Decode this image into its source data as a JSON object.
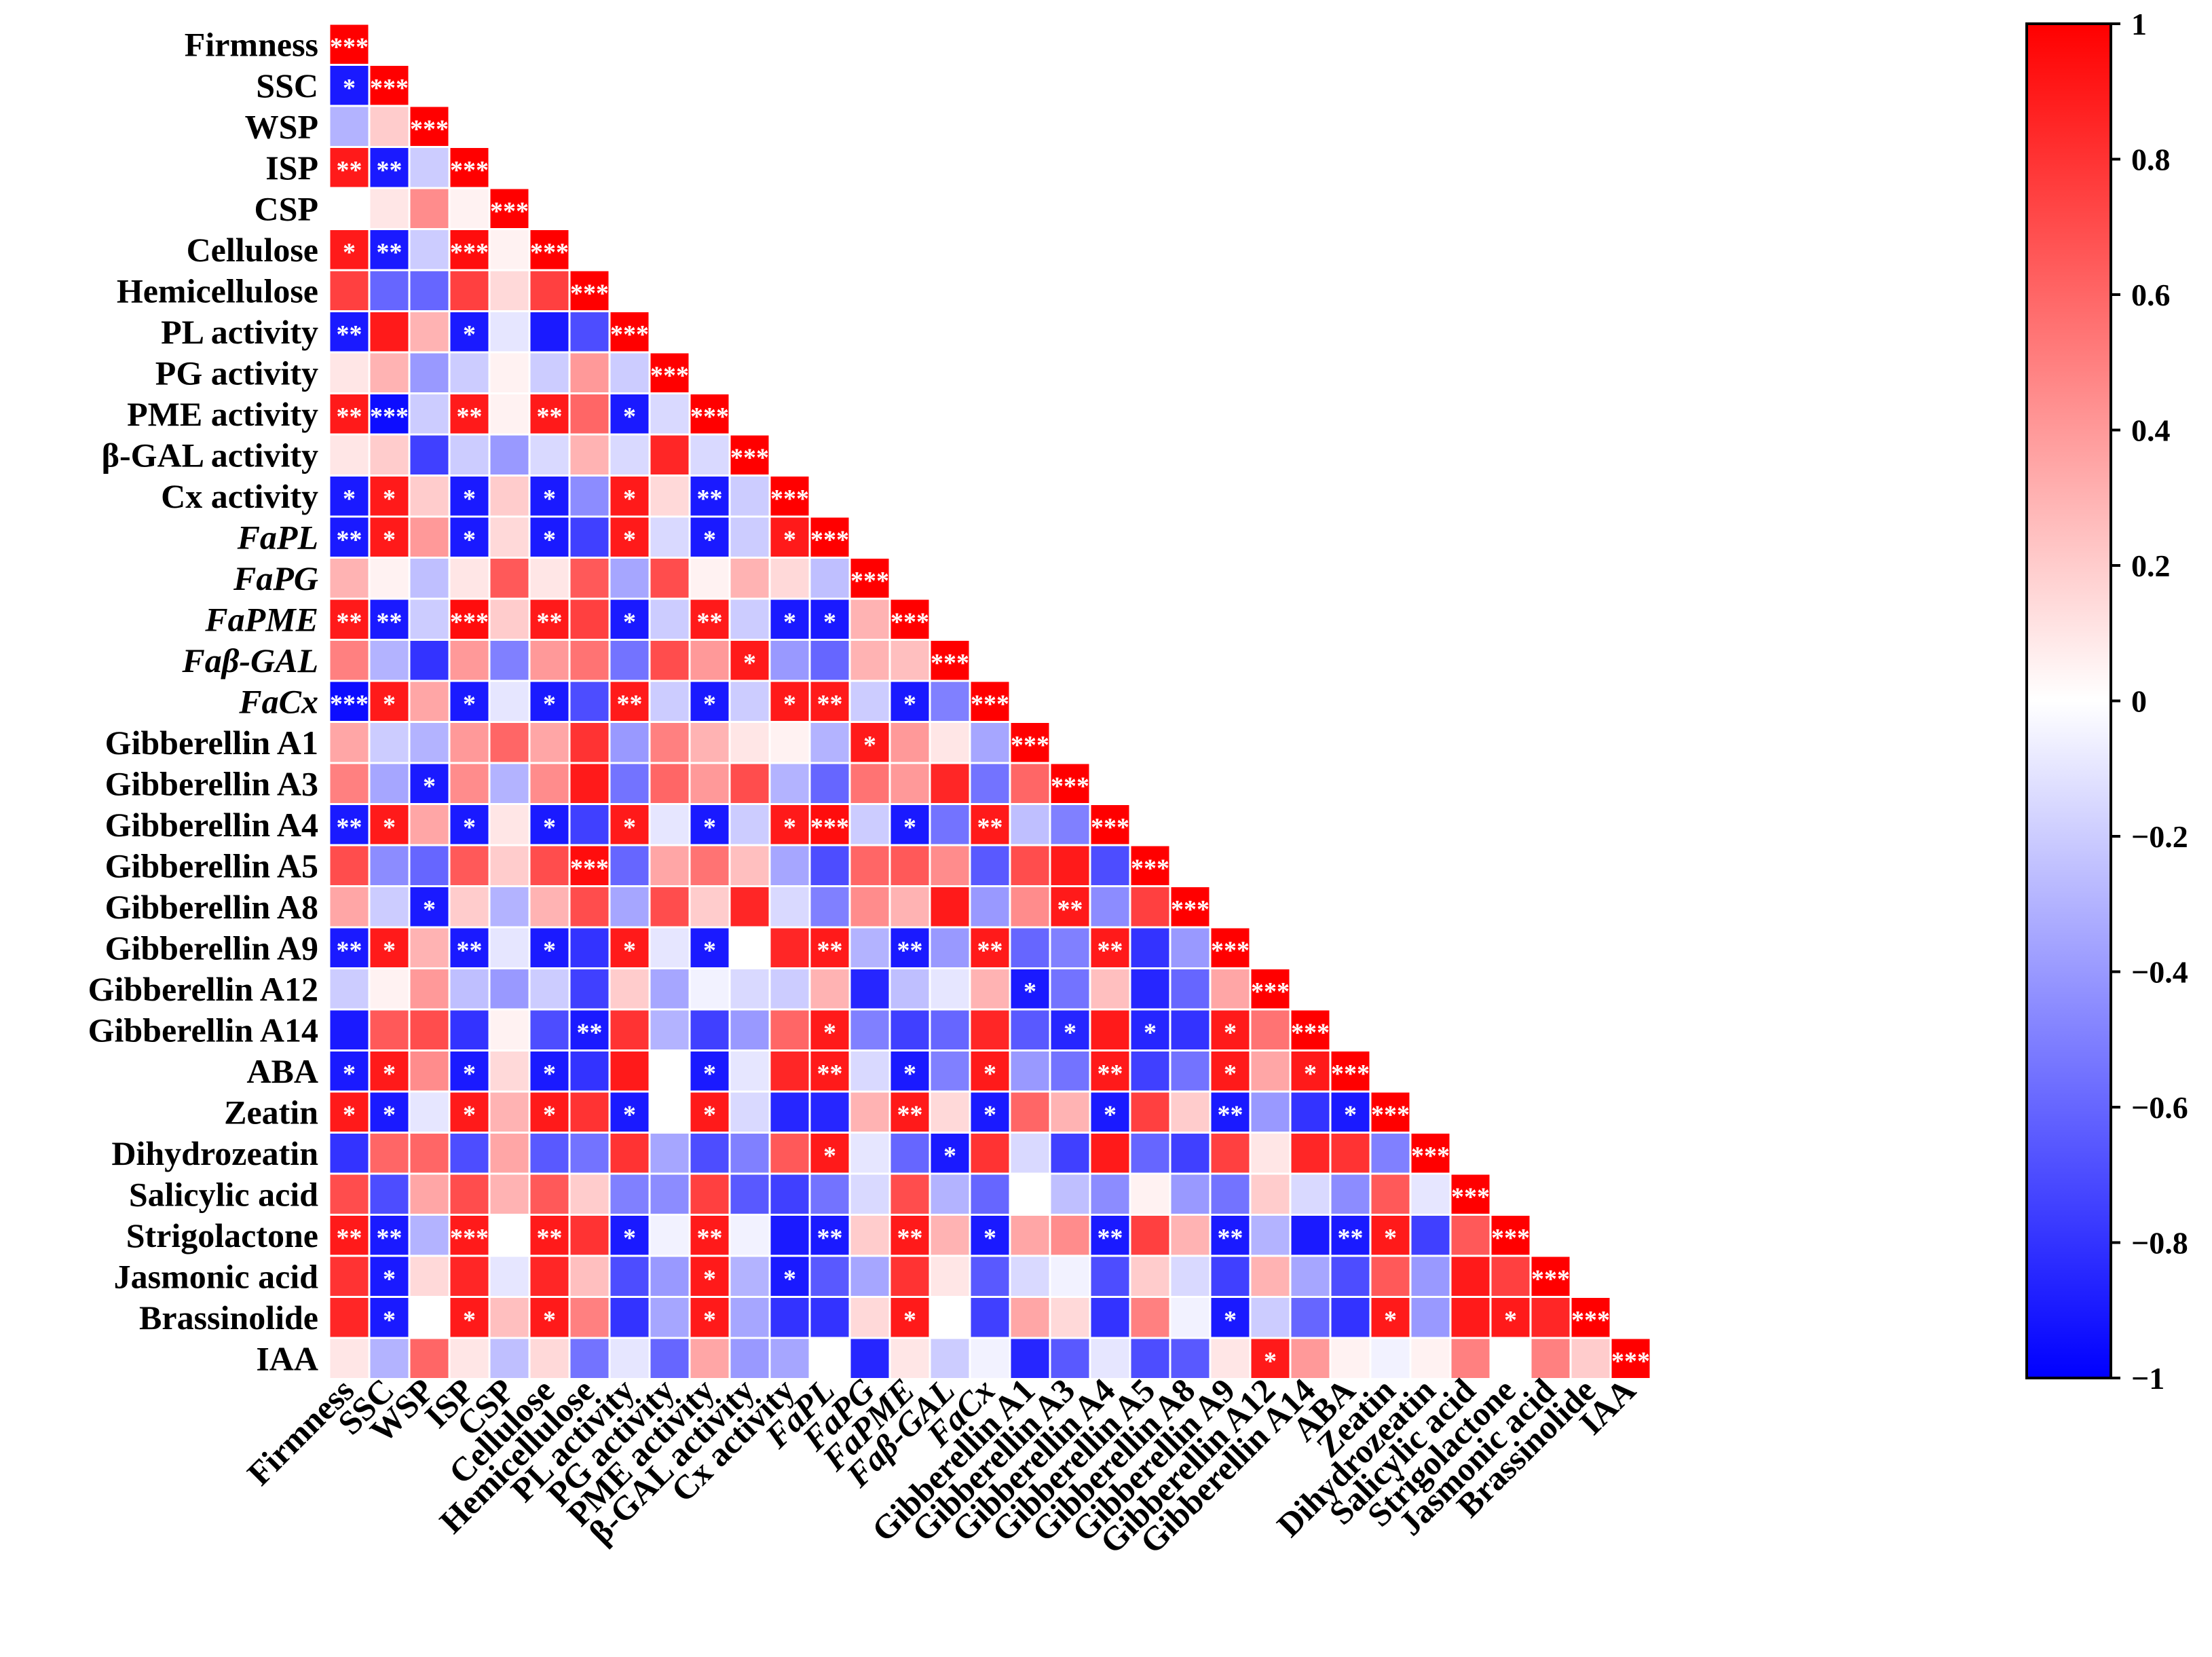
{
  "chart_data": {
    "type": "heatmap",
    "variables": [
      {
        "label": "Firmness",
        "italic": false
      },
      {
        "label": "SSC",
        "italic": false
      },
      {
        "label": "WSP",
        "italic": false
      },
      {
        "label": "ISP",
        "italic": false
      },
      {
        "label": "CSP",
        "italic": false
      },
      {
        "label": "Cellulose",
        "italic": false
      },
      {
        "label": "Hemicellulose",
        "italic": false
      },
      {
        "label": "PL activity",
        "italic": false
      },
      {
        "label": "PG activity",
        "italic": false
      },
      {
        "label": "PME activity",
        "italic": false
      },
      {
        "label": "β-GAL activity",
        "italic": false
      },
      {
        "label": "Cx activity",
        "italic": false
      },
      {
        "label": "FaPL",
        "italic": true
      },
      {
        "label": "FaPG",
        "italic": true
      },
      {
        "label": "FaPME",
        "italic": true
      },
      {
        "label": "Faβ-GAL",
        "italic": true
      },
      {
        "label": "FaCx",
        "italic": true
      },
      {
        "label": "Gibberellin A1",
        "italic": false
      },
      {
        "label": "Gibberellin A3",
        "italic": false
      },
      {
        "label": "Gibberellin A4",
        "italic": false
      },
      {
        "label": "Gibberellin A5",
        "italic": false
      },
      {
        "label": "Gibberellin A8",
        "italic": false
      },
      {
        "label": "Gibberellin A9",
        "italic": false
      },
      {
        "label": "Gibberellin A12",
        "italic": false
      },
      {
        "label": "Gibberellin A14",
        "italic": false
      },
      {
        "label": "ABA",
        "italic": false
      },
      {
        "label": "Zeatin",
        "italic": false
      },
      {
        "label": "Dihydrozeatin",
        "italic": false
      },
      {
        "label": "Salicylic acid",
        "italic": false
      },
      {
        "label": "Strigolactone",
        "italic": false
      },
      {
        "label": "Jasmonic acid",
        "italic": false
      },
      {
        "label": "Brassinolide",
        "italic": false
      },
      {
        "label": "IAA",
        "italic": false
      }
    ],
    "correlation_rows": [
      [
        1
      ],
      [
        -0.9,
        1
      ],
      [
        -0.3,
        0.2,
        1
      ],
      [
        0.9,
        -0.9,
        -0.2,
        1
      ],
      [
        0.0,
        0.1,
        0.45,
        0.05,
        1
      ],
      [
        0.9,
        -0.9,
        -0.2,
        0.95,
        0.05,
        1
      ],
      [
        0.75,
        -0.6,
        -0.6,
        0.75,
        0.15,
        0.75,
        1
      ],
      [
        -0.9,
        0.9,
        0.3,
        -0.9,
        -0.1,
        -0.9,
        -0.7,
        1
      ],
      [
        0.1,
        0.3,
        -0.4,
        -0.2,
        0.05,
        -0.2,
        0.4,
        -0.2,
        1
      ],
      [
        0.9,
        -0.95,
        -0.2,
        0.9,
        0.05,
        0.9,
        0.6,
        -0.9,
        -0.15,
        1
      ],
      [
        0.1,
        0.2,
        -0.75,
        -0.2,
        -0.4,
        -0.15,
        0.3,
        -0.15,
        0.85,
        -0.15,
        1
      ],
      [
        -0.9,
        0.9,
        0.2,
        -0.9,
        0.2,
        -0.9,
        -0.45,
        0.9,
        0.15,
        -0.9,
        -0.2,
        1
      ],
      [
        -0.9,
        0.9,
        0.4,
        -0.9,
        0.15,
        -0.9,
        -0.75,
        0.9,
        -0.15,
        -0.9,
        -0.2,
        0.9,
        1
      ],
      [
        0.3,
        0.05,
        -0.25,
        0.1,
        0.65,
        0.1,
        0.65,
        -0.35,
        0.7,
        0.05,
        0.3,
        0.15,
        -0.25,
        1
      ],
      [
        0.9,
        -0.9,
        -0.2,
        0.95,
        0.2,
        0.9,
        0.75,
        -0.9,
        -0.2,
        0.9,
        -0.2,
        -0.9,
        -0.9,
        0.3,
        1
      ],
      [
        0.5,
        -0.3,
        -0.8,
        0.4,
        -0.5,
        0.4,
        0.55,
        -0.55,
        0.7,
        0.4,
        0.9,
        -0.4,
        -0.6,
        0.3,
        0.25,
        1
      ],
      [
        -0.95,
        0.9,
        0.35,
        -0.9,
        -0.1,
        -0.9,
        -0.7,
        0.9,
        -0.2,
        -0.9,
        -0.2,
        0.9,
        0.9,
        -0.2,
        -0.9,
        -0.5,
        1
      ],
      [
        0.35,
        -0.2,
        -0.3,
        0.4,
        0.6,
        0.35,
        0.8,
        -0.4,
        0.5,
        0.3,
        0.1,
        0.05,
        -0.3,
        0.9,
        0.4,
        0.1,
        -0.35,
        1
      ],
      [
        0.5,
        -0.35,
        -0.9,
        0.45,
        -0.3,
        0.45,
        0.9,
        -0.55,
        0.6,
        0.4,
        0.7,
        -0.3,
        -0.6,
        0.55,
        0.4,
        0.85,
        -0.55,
        0.6,
        1
      ],
      [
        -0.9,
        0.9,
        0.35,
        -0.9,
        0.1,
        -0.9,
        -0.75,
        0.9,
        -0.1,
        -0.9,
        -0.2,
        0.9,
        0.95,
        -0.2,
        -0.9,
        -0.55,
        0.9,
        -0.25,
        -0.5,
        1
      ],
      [
        0.7,
        -0.45,
        -0.6,
        0.65,
        0.2,
        0.7,
        0.95,
        -0.6,
        0.35,
        0.55,
        0.25,
        -0.35,
        -0.7,
        0.6,
        0.65,
        0.45,
        -0.65,
        0.7,
        0.9,
        -0.7,
        1
      ],
      [
        0.35,
        -0.2,
        -0.9,
        0.2,
        -0.3,
        0.3,
        0.7,
        -0.35,
        0.7,
        0.2,
        0.85,
        -0.15,
        -0.5,
        0.45,
        0.3,
        0.9,
        -0.4,
        0.45,
        0.9,
        -0.45,
        0.75,
        1
      ],
      [
        -0.9,
        0.9,
        0.3,
        -0.9,
        -0.1,
        -0.9,
        -0.8,
        0.9,
        -0.1,
        -0.9,
        0.0,
        0.85,
        0.9,
        -0.3,
        -0.9,
        -0.4,
        0.9,
        -0.6,
        -0.5,
        0.9,
        -0.8,
        -0.4,
        1
      ],
      [
        -0.2,
        0.05,
        0.4,
        -0.25,
        -0.4,
        -0.2,
        -0.75,
        0.2,
        -0.35,
        -0.05,
        -0.15,
        -0.2,
        0.3,
        -0.85,
        -0.25,
        -0.1,
        0.3,
        -0.9,
        -0.55,
        0.25,
        -0.85,
        -0.6,
        0.35,
        1
      ],
      [
        -0.9,
        0.65,
        0.7,
        -0.8,
        0.05,
        -0.7,
        -0.9,
        0.8,
        -0.3,
        -0.75,
        -0.4,
        0.6,
        0.9,
        -0.5,
        -0.75,
        -0.6,
        0.85,
        -0.65,
        -0.85,
        0.9,
        -0.85,
        -0.8,
        0.9,
        0.55,
        1
      ],
      [
        -0.9,
        0.9,
        0.45,
        -0.9,
        0.15,
        -0.9,
        -0.8,
        0.9,
        0.0,
        -0.9,
        -0.1,
        0.85,
        0.9,
        -0.15,
        -0.9,
        -0.5,
        0.9,
        -0.4,
        -0.55,
        0.9,
        -0.75,
        -0.55,
        0.9,
        0.35,
        0.9,
        1
      ],
      [
        0.9,
        -0.9,
        -0.1,
        0.9,
        0.3,
        0.9,
        0.8,
        -0.9,
        0.0,
        0.9,
        -0.15,
        -0.85,
        -0.85,
        0.3,
        0.9,
        0.15,
        -0.9,
        0.6,
        0.3,
        -0.9,
        0.75,
        0.2,
        -0.9,
        -0.4,
        -0.8,
        -0.9,
        1
      ],
      [
        -0.8,
        0.6,
        0.6,
        -0.7,
        0.35,
        -0.65,
        -0.55,
        0.8,
        -0.35,
        -0.7,
        -0.5,
        0.65,
        0.9,
        -0.1,
        -0.6,
        -0.9,
        0.8,
        -0.15,
        -0.75,
        0.9,
        -0.6,
        -0.75,
        0.75,
        0.1,
        0.85,
        0.8,
        -0.5,
        1
      ],
      [
        0.7,
        -0.7,
        0.35,
        0.7,
        0.3,
        0.65,
        0.2,
        -0.5,
        -0.45,
        0.75,
        -0.65,
        -0.75,
        -0.55,
        -0.15,
        0.7,
        -0.3,
        -0.6,
        0.0,
        -0.25,
        -0.45,
        0.05,
        -0.4,
        -0.55,
        0.2,
        -0.15,
        -0.45,
        0.65,
        -0.1,
        1
      ],
      [
        0.9,
        -0.9,
        -0.3,
        0.9,
        0.0,
        0.9,
        0.8,
        -0.9,
        -0.05,
        0.9,
        -0.05,
        -0.9,
        -0.9,
        0.2,
        0.9,
        0.3,
        -0.9,
        0.35,
        0.45,
        -0.9,
        0.75,
        0.3,
        -0.9,
        -0.3,
        -0.9,
        -0.9,
        0.9,
        -0.75,
        0.65,
        1
      ],
      [
        0.8,
        -0.9,
        0.15,
        0.85,
        -0.1,
        0.85,
        0.25,
        -0.7,
        -0.4,
        0.9,
        -0.3,
        -0.9,
        -0.65,
        -0.35,
        0.8,
        0.1,
        -0.65,
        -0.15,
        -0.05,
        -0.7,
        0.2,
        -0.15,
        -0.75,
        0.3,
        -0.35,
        -0.7,
        0.65,
        -0.4,
        0.9,
        0.75,
        1
      ],
      [
        0.85,
        -0.9,
        0.0,
        0.9,
        0.25,
        0.9,
        0.5,
        -0.8,
        -0.35,
        0.9,
        -0.35,
        -0.8,
        -0.8,
        0.15,
        0.9,
        0.0,
        -0.75,
        0.35,
        0.15,
        -0.8,
        0.5,
        -0.05,
        -0.9,
        -0.2,
        -0.6,
        -0.8,
        0.9,
        -0.4,
        0.9,
        0.9,
        0.85,
        1
      ],
      [
        0.1,
        -0.3,
        0.6,
        0.1,
        -0.25,
        0.15,
        -0.55,
        -0.1,
        -0.6,
        0.35,
        -0.4,
        -0.35,
        0.0,
        -0.85,
        0.1,
        -0.2,
        -0.05,
        -0.85,
        -0.65,
        -0.1,
        -0.7,
        -0.65,
        0.1,
        0.9,
        0.4,
        0.05,
        -0.05,
        0.05,
        0.5,
        0.0,
        0.5,
        0.2,
        1
      ]
    ],
    "significance_rows": [
      [
        "***"
      ],
      [
        "*",
        "***"
      ],
      [
        "",
        "",
        "***"
      ],
      [
        "**",
        "**",
        "",
        "***"
      ],
      [
        "",
        "",
        "",
        "",
        "***"
      ],
      [
        "*",
        "**",
        "",
        "***",
        "",
        "***"
      ],
      [
        "",
        "",
        "",
        "",
        "",
        "",
        "***"
      ],
      [
        "**",
        "",
        "",
        "*",
        "",
        "",
        "",
        "***"
      ],
      [
        "",
        "",
        "",
        "",
        "",
        "",
        "",
        "",
        "***"
      ],
      [
        "**",
        "***",
        "",
        "**",
        "",
        "**",
        "",
        "*",
        "",
        "***"
      ],
      [
        "",
        "",
        "",
        "",
        "",
        "",
        "",
        "",
        "",
        "",
        "***"
      ],
      [
        "*",
        "*",
        "",
        "*",
        "",
        "*",
        "",
        "*",
        "",
        "**",
        "",
        "***"
      ],
      [
        "**",
        "*",
        "",
        "*",
        "",
        "*",
        "",
        "*",
        "",
        "*",
        "",
        "*",
        "***"
      ],
      [
        "",
        "",
        "",
        "",
        "",
        "",
        "",
        "",
        "",
        "",
        "",
        "",
        "",
        "***"
      ],
      [
        "**",
        "**",
        "",
        "***",
        "",
        "**",
        "",
        "*",
        "",
        "**",
        "",
        "*",
        "*",
        "",
        "***"
      ],
      [
        "",
        "",
        "",
        "",
        "",
        "",
        "",
        "",
        "",
        "",
        "*",
        "",
        "",
        "",
        "",
        "***"
      ],
      [
        "***",
        "*",
        "",
        "*",
        "",
        "*",
        "",
        "**",
        "",
        "*",
        "",
        "*",
        "**",
        "",
        "*",
        "",
        "***"
      ],
      [
        "",
        "",
        "",
        "",
        "",
        "",
        "",
        "",
        "",
        "",
        "",
        "",
        "",
        "*",
        "",
        "",
        "",
        "***"
      ],
      [
        "",
        "",
        "*",
        "",
        "",
        "",
        "",
        "",
        "",
        "",
        "",
        "",
        "",
        "",
        "",
        "",
        "",
        "",
        "***"
      ],
      [
        "**",
        "*",
        "",
        "*",
        "",
        "*",
        "",
        "*",
        "",
        "*",
        "",
        "*",
        "***",
        "",
        "*",
        "",
        "**",
        "",
        "",
        "***"
      ],
      [
        "",
        "",
        "",
        "",
        "",
        "",
        "***",
        "",
        "",
        "",
        "",
        "",
        "",
        "",
        "",
        "",
        "",
        "",
        "",
        "",
        "***"
      ],
      [
        "",
        "",
        "*",
        "",
        "",
        "",
        "",
        "",
        "",
        "",
        "",
        "",
        "",
        "",
        "",
        "",
        "",
        "",
        "**",
        "",
        "",
        "***"
      ],
      [
        "**",
        "*",
        "",
        "**",
        "",
        "*",
        "",
        "*",
        "",
        "*",
        "",
        "",
        "**",
        "",
        "**",
        "",
        "**",
        "",
        "",
        "**",
        "",
        "",
        "***"
      ],
      [
        "",
        "",
        "",
        "",
        "",
        "",
        "",
        "",
        "",
        "",
        "",
        "",
        "",
        "",
        "",
        "",
        "",
        "*",
        "",
        "",
        "",
        "",
        "",
        "***"
      ],
      [
        "",
        "",
        "",
        "",
        "",
        "",
        "**",
        "",
        "",
        "",
        "",
        "",
        "*",
        "",
        "",
        "",
        "",
        "",
        "*",
        "",
        "*",
        "",
        "*",
        "",
        "***"
      ],
      [
        "*",
        "*",
        "",
        "*",
        "",
        "*",
        "",
        "",
        "",
        "*",
        "",
        "",
        "**",
        "",
        "*",
        "",
        "*",
        "",
        "",
        "**",
        "",
        "",
        "*",
        "",
        "*",
        "***"
      ],
      [
        "*",
        "*",
        "",
        "*",
        "",
        "*",
        "",
        "*",
        "",
        "*",
        "",
        "",
        "",
        "",
        "**",
        "",
        "*",
        "",
        "",
        "*",
        "",
        "",
        "**",
        "",
        "",
        "*",
        "***"
      ],
      [
        "",
        "",
        "",
        "",
        "",
        "",
        "",
        "",
        "",
        "",
        "",
        "",
        "*",
        "",
        "",
        "*",
        "",
        "",
        "",
        "",
        "",
        "",
        "",
        "",
        "",
        "",
        "",
        "***"
      ],
      [
        "",
        "",
        "",
        "",
        "",
        "",
        "",
        "",
        "",
        "",
        "",
        "",
        "",
        "",
        "",
        "",
        "",
        "",
        "",
        "",
        "",
        "",
        "",
        "",
        "",
        "",
        "",
        "",
        "***"
      ],
      [
        "**",
        "**",
        "",
        "***",
        "",
        "**",
        "",
        "*",
        "",
        "**",
        "",
        "",
        "**",
        "",
        "**",
        "",
        "*",
        "",
        "",
        "**",
        "",
        "",
        "**",
        "",
        "",
        "**",
        "*",
        "",
        "",
        "***"
      ],
      [
        "",
        "*",
        "",
        "",
        "",
        "",
        "",
        "",
        "",
        "*",
        "",
        "*",
        "",
        "",
        "",
        "",
        "",
        "",
        "",
        "",
        "",
        "",
        "",
        "",
        "",
        "",
        "",
        "",
        "",
        "",
        "***"
      ],
      [
        "",
        "*",
        "",
        "*",
        "",
        "*",
        "",
        "",
        "",
        "*",
        "",
        "",
        "",
        "",
        "*",
        "",
        "",
        "",
        "",
        "",
        "",
        "",
        "*",
        "",
        "",
        "",
        "*",
        "",
        "",
        "*",
        "",
        "***"
      ],
      [
        "",
        "",
        "",
        "",
        "",
        "",
        "",
        "",
        "",
        "",
        "",
        "",
        "",
        "",
        "",
        "",
        "",
        "",
        "",
        "",
        "",
        "",
        "",
        "*",
        "",
        "",
        "",
        "",
        "",
        "",
        "",
        "",
        "***"
      ]
    ],
    "color_scale": {
      "min": -1,
      "max": 1,
      "ticks": [
        "1",
        "0.8",
        "0.6",
        "0.4",
        "0.2",
        "0",
        "−0.2",
        "−0.4",
        "−0.6",
        "−0.8",
        "−1"
      ],
      "low_color": "#0000ff",
      "mid_color": "#ffffff",
      "high_color": "#ff0000"
    },
    "legend_position": "right",
    "significance_text_color": "#ffffff"
  }
}
